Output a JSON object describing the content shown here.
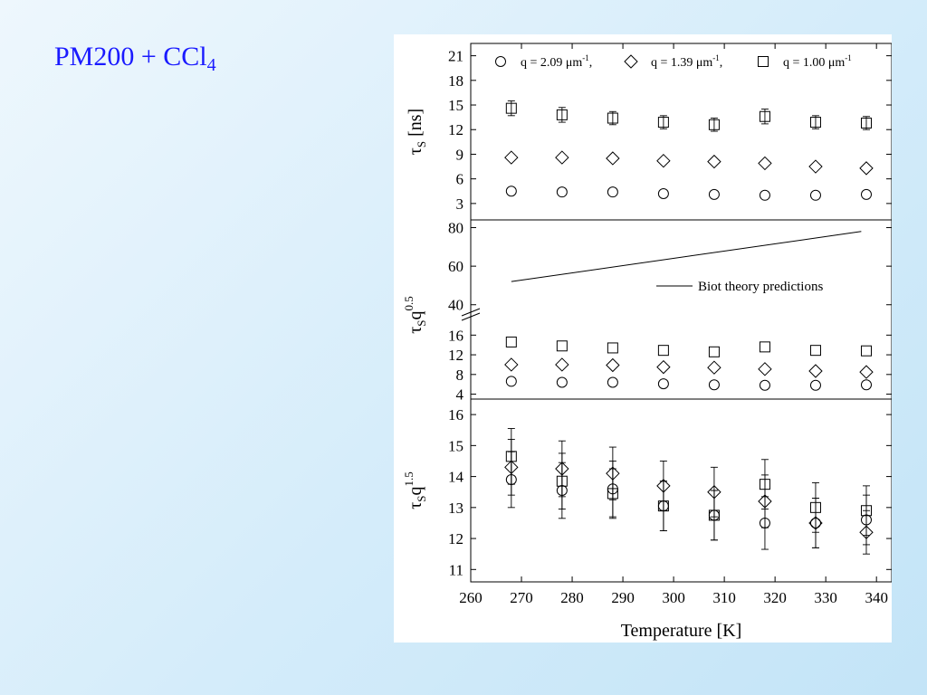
{
  "slide": {
    "title_main": "PM200 + CCl",
    "title_sub": "4"
  },
  "colors": {
    "title": "#1a1aff",
    "background": "#d4ecfa",
    "figure_bg": "#ffffff",
    "ink": "#000000"
  },
  "chart_data": [
    {
      "type": "scatter",
      "panel": "top",
      "ylabel": {
        "main": "τ",
        "sub": "S",
        "rest": " [ns]"
      },
      "yticks": [
        3,
        6,
        9,
        12,
        15,
        18,
        21
      ],
      "ylim": [
        1,
        22.5
      ],
      "xlim": [
        260,
        343
      ],
      "x": [
        268,
        278,
        288,
        298,
        308,
        318,
        328,
        338
      ],
      "legend": {
        "placement": "top",
        "entries": [
          {
            "marker": "circle",
            "label": "q = 2.09 μm",
            "sup": "-1",
            "tail": ","
          },
          {
            "marker": "diamond",
            "label": "q = 1.39 μm",
            "sup": "-1",
            "tail": ","
          },
          {
            "marker": "square",
            "label": "q = 1.00 μm",
            "sup": "-1",
            "tail": ""
          }
        ]
      },
      "series": [
        {
          "marker": "circle",
          "values": [
            4.5,
            4.4,
            4.4,
            4.2,
            4.1,
            4.0,
            4.0,
            4.1
          ]
        },
        {
          "marker": "diamond",
          "values": [
            8.6,
            8.6,
            8.5,
            8.2,
            8.1,
            7.9,
            7.5,
            7.3
          ]
        },
        {
          "marker": "square",
          "values": [
            14.6,
            13.8,
            13.4,
            12.9,
            12.6,
            13.6,
            12.9,
            12.8
          ],
          "err": [
            0.9,
            0.9,
            0.8,
            0.8,
            0.8,
            0.9,
            0.8,
            0.8
          ]
        }
      ]
    },
    {
      "type": "scatter",
      "panel": "middle",
      "ylabel": {
        "main": "τ",
        "sub": "S",
        "rest": "q",
        "sup": "0.5"
      },
      "yticks_lower": [
        4,
        8,
        12,
        16
      ],
      "yticks_upper": [
        40,
        60,
        80
      ],
      "ylim_lower": [
        3,
        19
      ],
      "ylim_upper": [
        38,
        84
      ],
      "axis_break": true,
      "xlim": [
        260,
        343
      ],
      "x": [
        268,
        278,
        288,
        298,
        308,
        318,
        328,
        338
      ],
      "series": [
        {
          "marker": "circle",
          "values": [
            6.6,
            6.4,
            6.4,
            6.1,
            5.9,
            5.8,
            5.8,
            5.9
          ]
        },
        {
          "marker": "diamond",
          "values": [
            10.0,
            10.0,
            9.9,
            9.5,
            9.4,
            9.1,
            8.7,
            8.5
          ]
        },
        {
          "marker": "square",
          "values": [
            14.6,
            13.8,
            13.4,
            12.9,
            12.6,
            13.6,
            12.9,
            12.8
          ]
        }
      ],
      "line": {
        "label": "Biot theory predictions",
        "x": [
          268,
          337
        ],
        "y": [
          52,
          78
        ]
      }
    },
    {
      "type": "scatter",
      "panel": "bottom",
      "ylabel": {
        "main": "τ",
        "sub": "S",
        "rest": "q",
        "sup": "1.5"
      },
      "yticks": [
        11,
        12,
        13,
        14,
        15,
        16
      ],
      "ylim": [
        10.6,
        16.5
      ],
      "xlim": [
        260,
        343
      ],
      "xticks": [
        260,
        270,
        280,
        290,
        300,
        310,
        320,
        330,
        340
      ],
      "xlabel": "Temperature [K]",
      "x": [
        268,
        278,
        288,
        298,
        308,
        318,
        328,
        338
      ],
      "series": [
        {
          "marker": "circle",
          "values": [
            13.9,
            13.55,
            13.6,
            13.05,
            12.75,
            12.5,
            12.5,
            12.6
          ],
          "err": [
            0.9,
            0.9,
            0.9,
            0.8,
            0.8,
            0.85,
            0.8,
            0.8
          ]
        },
        {
          "marker": "diamond",
          "values": [
            14.3,
            14.25,
            14.1,
            13.7,
            13.5,
            13.2,
            12.5,
            12.2
          ],
          "err": [
            0.9,
            0.9,
            0.85,
            0.8,
            0.8,
            0.85,
            0.8,
            0.7
          ]
        },
        {
          "marker": "square",
          "values": [
            14.65,
            13.85,
            13.45,
            13.05,
            12.75,
            13.75,
            13.0,
            12.9
          ],
          "err": [
            0.9,
            0.9,
            0.8,
            0.8,
            0.8,
            0.8,
            0.8,
            0.8
          ]
        }
      ]
    }
  ]
}
